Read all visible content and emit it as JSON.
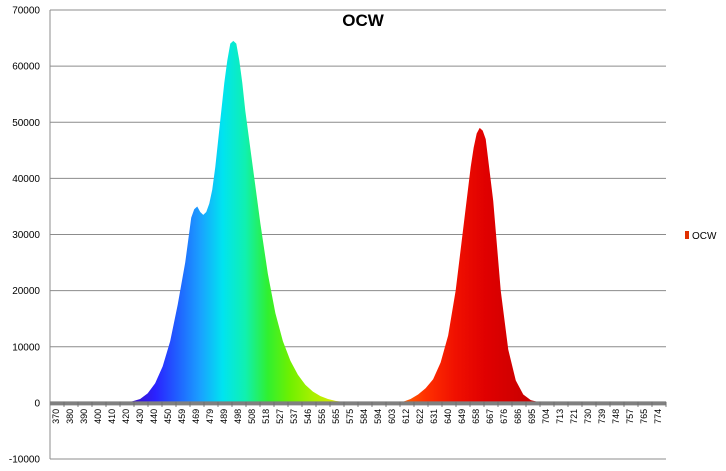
{
  "chart_data": {
    "type": "area",
    "title": "OCW",
    "xlabel": "",
    "ylabel": "",
    "xlim": [
      370,
      780
    ],
    "ylim": [
      -10000,
      70000
    ],
    "grid": true,
    "legend": {
      "position": "right",
      "entries": [
        "OCW"
      ]
    },
    "y_ticks": [
      "-10000",
      "0",
      "10000",
      "20000",
      "30000",
      "40000",
      "50000",
      "60000",
      "70000"
    ],
    "x_ticks": [
      "370",
      "380",
      "390",
      "400",
      "410",
      "420",
      "430",
      "440",
      "450",
      "459",
      "469",
      "479",
      "489",
      "498",
      "508",
      "518",
      "527",
      "537",
      "546",
      "556",
      "565",
      "575",
      "584",
      "594",
      "603",
      "612",
      "622",
      "631",
      "640",
      "649",
      "658",
      "667",
      "676",
      "686",
      "695",
      "704",
      "713",
      "721",
      "730",
      "739",
      "748",
      "757",
      "765",
      "774"
    ],
    "series": [
      {
        "name": "OCW",
        "x": [
          370,
          420,
          425,
          430,
          435,
          440,
          445,
          450,
          455,
          460,
          462,
          464,
          466,
          468,
          470,
          472,
          474,
          476,
          478,
          480,
          482,
          484,
          486,
          488,
          490,
          492,
          494,
          496,
          498,
          500,
          505,
          510,
          515,
          520,
          525,
          530,
          535,
          540,
          545,
          550,
          555,
          560,
          565,
          570,
          575,
          580,
          585,
          590,
          595,
          600,
          605,
          610,
          615,
          620,
          625,
          630,
          635,
          640,
          645,
          650,
          652,
          654,
          656,
          658,
          660,
          665,
          670,
          675,
          680,
          685,
          690,
          695,
          700,
          780
        ],
        "y": [
          0,
          0,
          300,
          700,
          1700,
          3500,
          6500,
          11000,
          17500,
          25000,
          29000,
          33000,
          34500,
          35000,
          34000,
          33500,
          34000,
          35500,
          38000,
          42000,
          47000,
          52000,
          57000,
          61000,
          64000,
          64500,
          64000,
          61000,
          57000,
          52000,
          42000,
          32000,
          23000,
          16000,
          11000,
          7500,
          5000,
          3200,
          2000,
          1200,
          700,
          350,
          150,
          50,
          0,
          0,
          0,
          0,
          0,
          0,
          200,
          700,
          1500,
          2600,
          4200,
          7200,
          12000,
          20000,
          31000,
          42000,
          45500,
          48000,
          49000,
          48500,
          47000,
          36000,
          20000,
          9500,
          4000,
          1500,
          500,
          150,
          0,
          0
        ]
      }
    ]
  }
}
